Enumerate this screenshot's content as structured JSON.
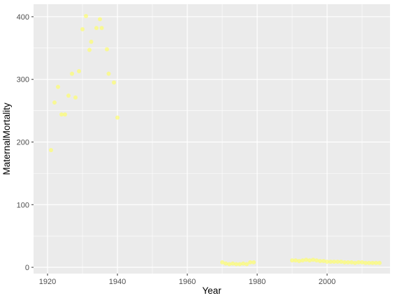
{
  "chart_data": {
    "type": "scatter",
    "xlabel": "Year",
    "ylabel": "MaternalMortality",
    "xlim": [
      1916,
      2018
    ],
    "ylim": [
      -10,
      420
    ],
    "x_ticks": [
      1920,
      1940,
      1960,
      1980,
      2000
    ],
    "y_ticks": [
      0,
      100,
      200,
      300,
      400
    ],
    "grid": true,
    "legend": "none",
    "point_color": "#ffff66",
    "panel_color": "#ebebeb",
    "series": [
      {
        "x": [
          1921,
          1922,
          1923,
          1924,
          1925,
          1926,
          1927,
          1928,
          1929,
          1930,
          1931,
          1932,
          1932.5,
          1934,
          1935,
          1935.5,
          1937,
          1937.5,
          1939,
          1940,
          1970,
          1971,
          1972,
          1973,
          1974,
          1975,
          1976,
          1977,
          1978,
          1979,
          1990,
          1991,
          1992,
          1993,
          1994,
          1995,
          1996,
          1997,
          1998,
          1999,
          2000,
          2001,
          2002,
          2003,
          2004,
          2005,
          2006,
          2007,
          2008,
          2009,
          2010,
          2011,
          2012,
          2013,
          2014,
          2015
        ],
        "y": [
          187,
          263,
          288,
          244,
          244,
          274,
          309,
          271,
          313,
          380,
          401,
          347,
          360,
          382,
          396,
          382,
          348,
          309,
          295,
          239,
          8,
          6,
          5,
          6,
          5,
          5,
          6,
          5,
          8,
          8,
          11,
          11,
          10,
          11,
          12,
          11,
          12,
          11,
          10,
          10,
          9,
          9,
          9,
          9,
          9,
          8,
          8,
          8,
          7,
          8,
          8,
          7,
          7,
          7,
          7,
          7
        ]
      }
    ]
  }
}
